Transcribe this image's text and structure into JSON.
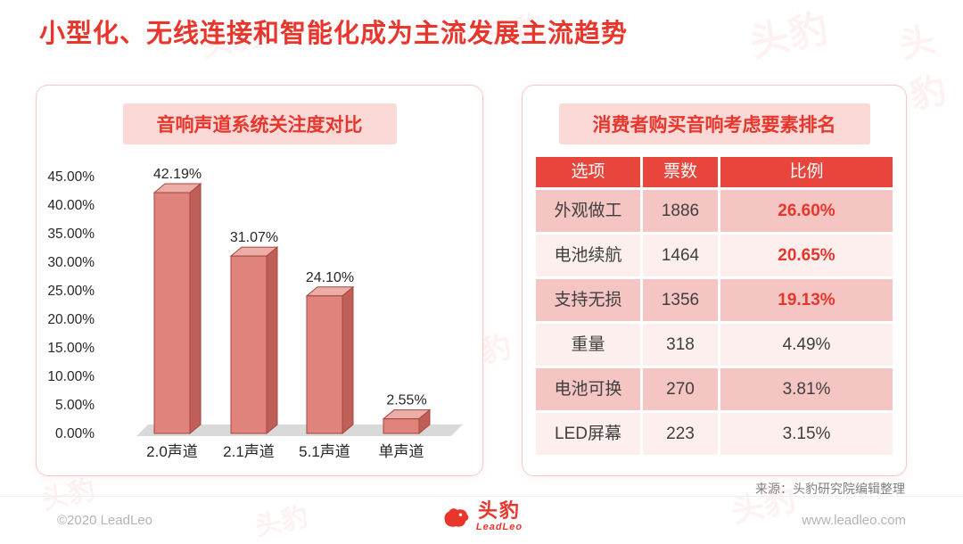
{
  "page": {
    "title": "小型化、无线连接和智能化成为主流发展主流趋势",
    "source_note": "来源：头豹研究院编辑整理",
    "footer": {
      "copyright": "©2020 LeadLeo",
      "website": "www.leadleo.com",
      "logo_text": "头豹",
      "logo_subtext": "LeadLeo"
    },
    "accent_color": "#e8362c"
  },
  "left_panel": {
    "title": "音响声道系统关注度对比"
  },
  "right_panel": {
    "title": "消费者购买音响考虑要素排名"
  },
  "chart_data": [
    {
      "type": "bar",
      "title": "音响声道系统关注度对比",
      "categories": [
        "2.0声道",
        "2.1声道",
        "5.1声道",
        "单声道"
      ],
      "values": [
        42.19,
        31.07,
        24.1,
        2.55
      ],
      "value_labels": [
        "42.19%",
        "31.07%",
        "24.10%",
        "2.55%"
      ],
      "xlabel": "",
      "ylabel": "",
      "ylim": [
        0,
        45
      ],
      "ytick_step": 5,
      "ytick_labels": [
        "0.00%",
        "5.00%",
        "10.00%",
        "15.00%",
        "20.00%",
        "25.00%",
        "30.00%",
        "35.00%",
        "40.00%",
        "45.00%"
      ],
      "grid": false,
      "legend": "none",
      "style": "3d-bar",
      "colors": {
        "front": "#e0837c",
        "top": "#ecada7",
        "side": "#c05f58",
        "stroke": "#a6453e",
        "floor": "#d9d9d9"
      }
    },
    {
      "type": "table",
      "title": "消费者购买音响考虑要素排名",
      "headers": [
        "选项",
        "票数",
        "比例"
      ],
      "rows": [
        {
          "option": "外观做工",
          "votes": "1886",
          "ratio": "26.60%",
          "highlight": true
        },
        {
          "option": "电池续航",
          "votes": "1464",
          "ratio": "20.65%",
          "highlight": true
        },
        {
          "option": "支持无损",
          "votes": "1356",
          "ratio": "19.13%",
          "highlight": true
        },
        {
          "option": "重量",
          "votes": "318",
          "ratio": "4.49%",
          "highlight": false
        },
        {
          "option": "电池可换",
          "votes": "270",
          "ratio": "3.81%",
          "highlight": false
        },
        {
          "option": "LED屏幕",
          "votes": "223",
          "ratio": "3.15%",
          "highlight": false
        }
      ]
    }
  ]
}
